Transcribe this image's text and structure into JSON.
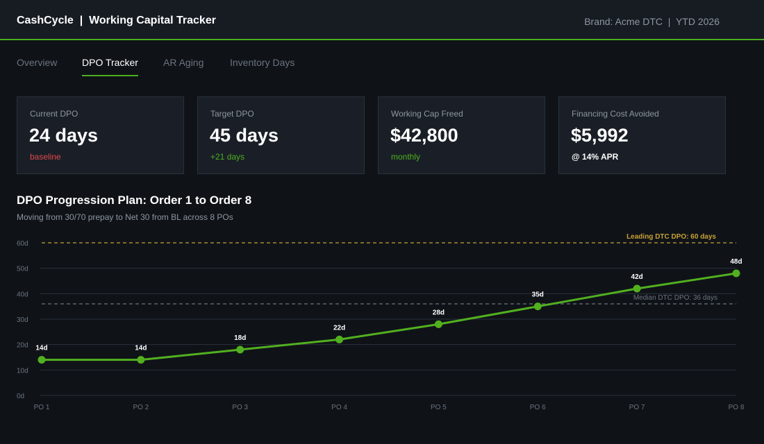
{
  "header": {
    "title": "CashCycle  |  Working Capital Tracker",
    "brand_info": "Brand: Acme DTC  |  YTD 2026"
  },
  "tabs": [
    {
      "label": "Overview",
      "active": false
    },
    {
      "label": "DPO Tracker",
      "active": true
    },
    {
      "label": "AR Aging",
      "active": false
    },
    {
      "label": "Inventory Days",
      "active": false
    }
  ],
  "cards": [
    {
      "label": "Current DPO",
      "value": "24 days",
      "sub": "baseline",
      "sub_color": "#e0484c"
    },
    {
      "label": "Target DPO",
      "value": "45 days",
      "sub": "+21 days",
      "sub_color": "#4caf1f"
    },
    {
      "label": "Working Cap Freed",
      "value": "$42,800",
      "sub": "monthly",
      "sub_color": "#4caf1f"
    },
    {
      "label": "Financing Cost Avoided",
      "value": "$5,992",
      "sub": "@ 14% APR",
      "sub_color": "#ffffff"
    }
  ],
  "chart_data": {
    "type": "line",
    "title": "DPO Progression Plan: Order 1 to Order 8",
    "subtitle": "Moving from 30/70 prepay to Net 30 from BL across 8 POs",
    "categories": [
      "PO 1",
      "PO 2",
      "PO 3",
      "PO 4",
      "PO 5",
      "PO 6",
      "PO 7",
      "PO 8"
    ],
    "series": [
      {
        "values": [
          14,
          14,
          18,
          22,
          28,
          35,
          42,
          48
        ],
        "color": "#52b01f"
      }
    ],
    "data_labels": [
      "14d",
      "14d",
      "18d",
      "22d",
      "28d",
      "35d",
      "42d",
      "48d"
    ],
    "ylim": [
      0,
      60
    ],
    "yticks": [
      0,
      10,
      20,
      30,
      40,
      50,
      60
    ],
    "ytick_labels": [
      "0d",
      "10d",
      "20d",
      "30d",
      "40d",
      "50d",
      "60d"
    ],
    "grid": true,
    "reference_lines": [
      {
        "value": 60,
        "label": "Leading DTC DPO: 60 days",
        "color": "#c9a035"
      },
      {
        "value": 36,
        "label": "Median DTC DPO: 36 days",
        "color": "#6b737d"
      }
    ]
  }
}
